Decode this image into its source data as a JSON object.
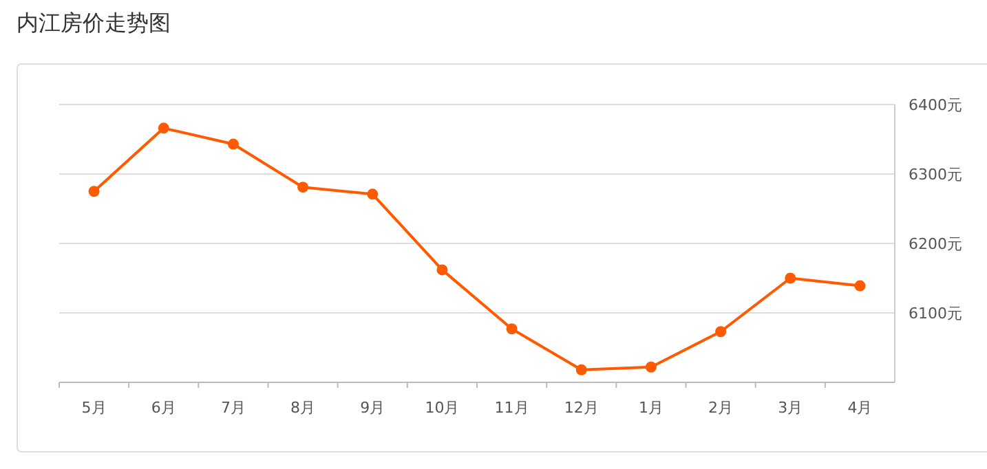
{
  "chart_data": {
    "type": "line",
    "title": "内江房价走势图",
    "categories": [
      "5月",
      "6月",
      "7月",
      "8月",
      "9月",
      "10月",
      "11月",
      "12月",
      "1月",
      "2月",
      "3月",
      "4月"
    ],
    "series": [
      {
        "color": "#ff5a00",
        "values": [
          6275,
          6366,
          6343,
          6281,
          6271,
          6162,
          6077,
          6018,
          6022,
          6073,
          6150,
          6139
        ]
      }
    ],
    "ylim": [
      6000,
      6400
    ],
    "yticks": [
      {
        "value": 6100,
        "label": "6100元"
      },
      {
        "value": 6200,
        "label": "6200元"
      },
      {
        "value": 6300,
        "label": "6300元"
      },
      {
        "value": 6400,
        "label": "6400元"
      }
    ],
    "grid": "y",
    "marker": "circle"
  }
}
